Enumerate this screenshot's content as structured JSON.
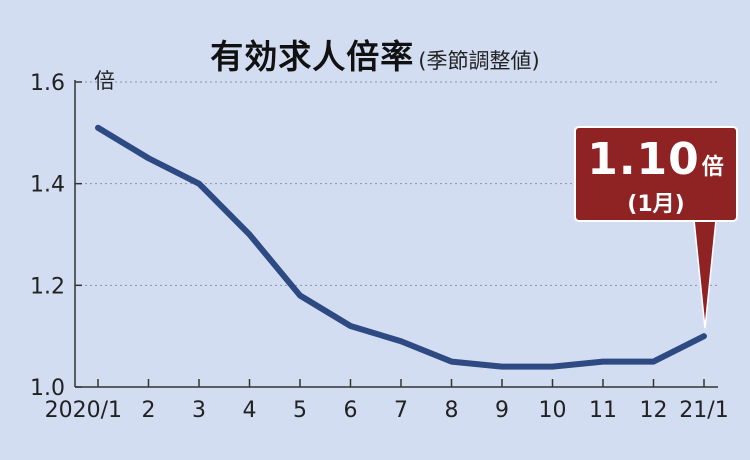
{
  "title": {
    "main": "有効求人倍率",
    "sub": "(季節調整値)"
  },
  "callout": {
    "value": "1.10",
    "unit": "倍",
    "month": "(1月)"
  },
  "colors": {
    "background": "#d3ddf2",
    "line": "#2e4a82",
    "callout": "#8f2323",
    "axis": "#333333"
  },
  "chart_data": {
    "type": "line",
    "title": "有効求人倍率",
    "subtitle": "(季節調整値)",
    "ylabel": "倍",
    "xlabel": "",
    "ylim": [
      1.0,
      1.6
    ],
    "yticks": [
      1.0,
      1.2,
      1.4,
      1.6
    ],
    "ytick_labels": [
      "1.0",
      "1.2",
      "1.4",
      "1.6"
    ],
    "categories": [
      "2020/1",
      "2",
      "3",
      "4",
      "5",
      "6",
      "7",
      "8",
      "9",
      "10",
      "11",
      "12",
      "21/1"
    ],
    "series": [
      {
        "values": [
          1.51,
          1.45,
          1.4,
          1.3,
          1.18,
          1.12,
          1.09,
          1.05,
          1.04,
          1.04,
          1.05,
          1.05,
          1.1
        ]
      }
    ],
    "grid": "horizontal-dashed",
    "legend": "none",
    "annotation": {
      "category": "21/1",
      "text": "1.10倍 (1月)"
    }
  }
}
